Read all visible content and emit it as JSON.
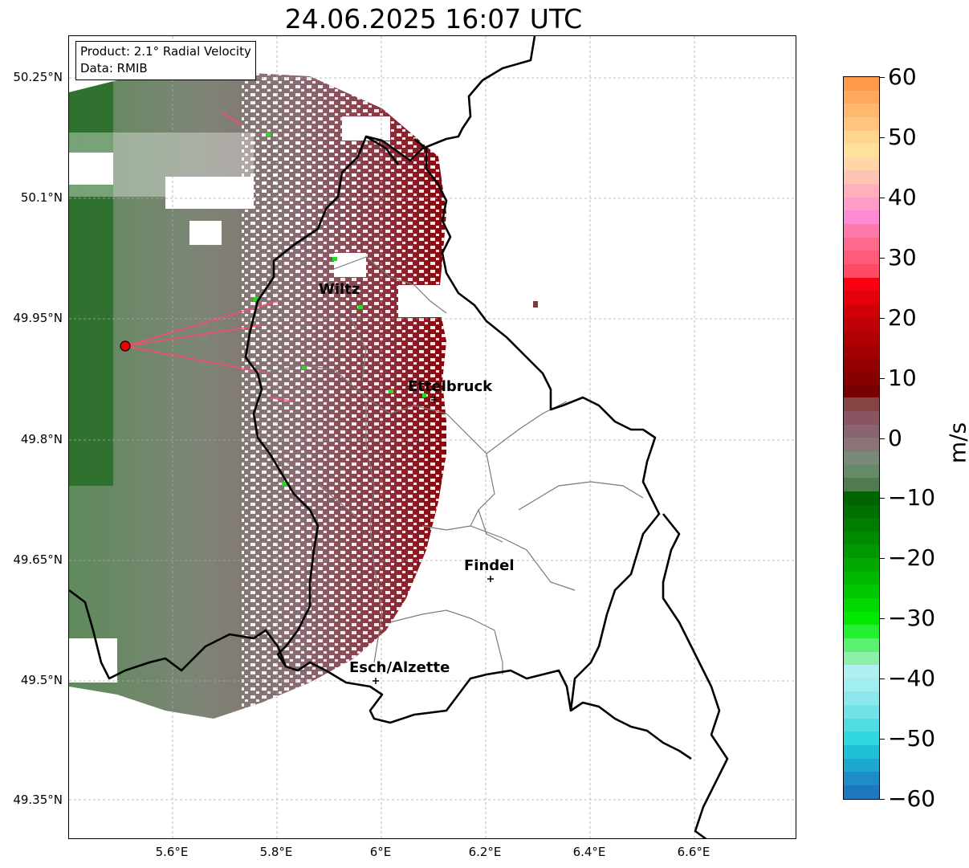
{
  "title": "24.06.2025 16:07 UTC",
  "info": {
    "product": "Product: 2.1° Radial Velocity",
    "data": "Data: RMIB"
  },
  "axes": {
    "y_labels": [
      "50.25°N",
      "50.1°N",
      "49.95°N",
      "49.8°N",
      "49.65°N",
      "49.5°N",
      "49.35°N"
    ],
    "x_labels": [
      "5.6°E",
      "5.8°E",
      "6°E",
      "6.2°E",
      "6.4°E",
      "6.6°E"
    ]
  },
  "cities": [
    "Wiltz",
    "Ettelbruck",
    "Findel",
    "Esch/Alzette"
  ],
  "colorbar": {
    "unit": "m/s",
    "ticks": [
      "60",
      "50",
      "40",
      "30",
      "20",
      "10",
      "0",
      "−10",
      "−20",
      "−30",
      "−40",
      "−50",
      "−60"
    ],
    "colors": [
      "#ff9a4c",
      "#ffa85e",
      "#ffb86e",
      "#ffc57e",
      "#ffd48e",
      "#ffe29a",
      "#ffd6a8",
      "#ffc4b4",
      "#ffb0bc",
      "#ff9cc8",
      "#ff8ad2",
      "#ff7aa8",
      "#ff6a8c",
      "#ff5a78",
      "#ff4a66",
      "#f80010",
      "#e40008",
      "#d00006",
      "#bf0004",
      "#b00004",
      "#a20002",
      "#940000",
      "#860000",
      "#780000",
      "#864444",
      "#8a5560",
      "#8a6470",
      "#8a7476",
      "#7a8a78",
      "#648a68",
      "#507a50",
      "#006400",
      "#007000",
      "#007c00",
      "#008a00",
      "#009800",
      "#00a800",
      "#00b800",
      "#00c800",
      "#00d800",
      "#00e800",
      "#22f030",
      "#5cf070",
      "#8cf0a8",
      "#b0f0f0",
      "#a0eef0",
      "#8ce8ec",
      "#70e2e8",
      "#50dce2",
      "#30d8e0",
      "#20c0d8",
      "#1ea8d0",
      "#1e8cc8",
      "#1e78c0"
    ]
  },
  "radar_site": {
    "lon": 5.505,
    "lat": 49.914
  }
}
